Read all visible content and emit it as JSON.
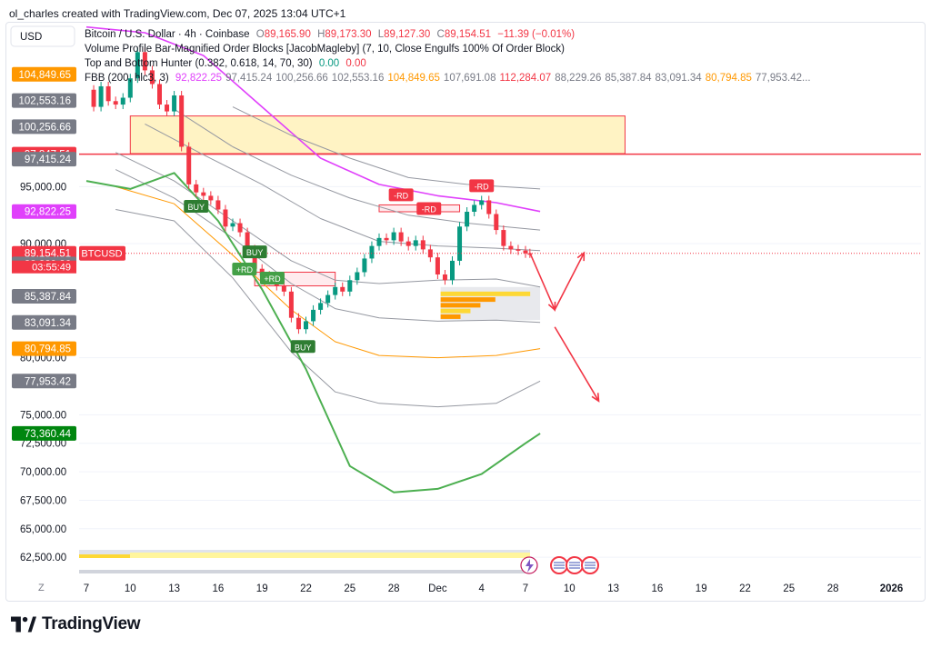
{
  "credit": "ol_charles created with TradingView.com, Dec 07, 2025 13:04 UTC+1",
  "currency_button": "USD",
  "scale_button": "Z",
  "brand": "TradingView",
  "legend": {
    "symbol_line": "Bitcoin / U.S. Dollar · 4h · Coinbase",
    "ohlc": {
      "o_label": "O",
      "o": "89,165.90",
      "h_label": "H",
      "h": "89,173.30",
      "l_label": "L",
      "l": "89,127.30",
      "c_label": "C",
      "c": "89,154.51",
      "change": "−11.39 (−0.01%)"
    },
    "indicator_1": "Volume Profile Bar-Magnified Order Blocks [JacobMagleby] (7, 10, Close Engulfs 100% Of Order Block)",
    "indicator_2": {
      "name": "Top and Bottom Hunter (0.382, 0.618, 14, 70, 30)",
      "v1": "0.00",
      "v2": "0.00"
    },
    "indicator_3": {
      "name": "FBB (200, hlc3, 3)",
      "values": [
        {
          "text": "92,822.25",
          "color": "#e040fb"
        },
        {
          "text": "97,415.24",
          "color": "#787b86"
        },
        {
          "text": "100,256.66",
          "color": "#787b86"
        },
        {
          "text": "102,553.16",
          "color": "#787b86"
        },
        {
          "text": "104,849.65",
          "color": "#ff9800"
        },
        {
          "text": "107,691.08",
          "color": "#787b86"
        },
        {
          "text": "112,284.07",
          "color": "#f23645"
        },
        {
          "text": "88,229.26",
          "color": "#787b86"
        },
        {
          "text": "85,387.84",
          "color": "#787b86"
        },
        {
          "text": "83,091.34",
          "color": "#787b86"
        },
        {
          "text": "80,794.85",
          "color": "#ff9800"
        },
        {
          "text": "77,953.42...",
          "color": "#787b86"
        }
      ]
    }
  },
  "symbol_tag": "BTCUSD",
  "countdown": "03:55:49",
  "chart_data": {
    "type": "line",
    "title": "Bitcoin / U.S. Dollar · 4h · Coinbase",
    "xlabel": "",
    "ylabel": "",
    "ylim": [
      61000,
      108500
    ],
    "y_ticks": [
      "62,500.00",
      "65,000.00",
      "67,500.00",
      "70,000.00",
      "72,500.00",
      "75,000.00",
      "80,000.00",
      "90,000.00",
      "95,000.00"
    ],
    "y_tick_values": [
      62500,
      65000,
      67500,
      70000,
      72500,
      75000,
      80000,
      90000,
      95000
    ],
    "x_ticks": [
      {
        "label": "7",
        "day": 0
      },
      {
        "label": "10",
        "day": 3
      },
      {
        "label": "13",
        "day": 6
      },
      {
        "label": "16",
        "day": 9
      },
      {
        "label": "19",
        "day": 12
      },
      {
        "label": "22",
        "day": 15
      },
      {
        "label": "25",
        "day": 18
      },
      {
        "label": "28",
        "day": 21
      },
      {
        "label": "Dec",
        "day": 24
      },
      {
        "label": "4",
        "day": 27
      },
      {
        "label": "7",
        "day": 30
      },
      {
        "label": "10",
        "day": 33
      },
      {
        "label": "13",
        "day": 36
      },
      {
        "label": "16",
        "day": 39
      },
      {
        "label": "19",
        "day": 42
      },
      {
        "label": "22",
        "day": 45
      },
      {
        "label": "25",
        "day": 48
      },
      {
        "label": "28",
        "day": 51
      },
      {
        "label": "2026",
        "day": 55
      }
    ],
    "price_labels": [
      {
        "text": "104,849.65",
        "value": 104849.65,
        "bg": "#ff9800",
        "fg": "#ffffff"
      },
      {
        "text": "102,553.16",
        "value": 102553.16,
        "bg": "#787b86",
        "fg": "#ffffff"
      },
      {
        "text": "100,256.66",
        "value": 100256.66,
        "bg": "#787b86",
        "fg": "#ffffff"
      },
      {
        "text": "97,847.51",
        "value": 97847.51,
        "bg": "#f23645",
        "fg": "#ffffff"
      },
      {
        "text": "97,415.24",
        "value": 97415.24,
        "bg": "#787b86",
        "fg": "#ffffff"
      },
      {
        "text": "92,822.25",
        "value": 92822.25,
        "bg": "#e040fb",
        "fg": "#ffffff"
      },
      {
        "text": "89,154.51",
        "value": 89154.51,
        "bg": "#f23645",
        "fg": "#ffffff"
      },
      {
        "text": "88,229.26",
        "value": 88229.26,
        "bg": "#787b86",
        "fg": "#ffffff"
      },
      {
        "text": "85,387.84",
        "value": 85387.84,
        "bg": "#787b86",
        "fg": "#ffffff"
      },
      {
        "text": "83,091.34",
        "value": 83091.34,
        "bg": "#787b86",
        "fg": "#ffffff"
      },
      {
        "text": "80,794.85",
        "value": 80794.85,
        "bg": "#ff9800",
        "fg": "#ffffff"
      },
      {
        "text": "77,953.42",
        "value": 77953.42,
        "bg": "#787b86",
        "fg": "#ffffff"
      },
      {
        "text": "73,360.44",
        "value": 73360.44,
        "bg": "#00860f",
        "fg": "#ffffff"
      }
    ],
    "price_path": {
      "x": [
        0,
        0.5,
        1,
        1.5,
        2,
        2.5,
        3,
        3.5,
        4,
        4.5,
        5,
        5.5,
        6,
        6.5,
        7,
        7.5,
        8,
        8.5,
        9,
        9.5,
        10,
        10.5,
        11,
        11.5,
        12,
        12.5,
        13,
        13.5,
        14,
        14.5,
        15,
        15.5,
        16,
        16.5,
        17,
        17.5,
        18,
        18.5,
        19,
        19.5,
        20,
        20.5,
        21,
        21.5,
        22,
        22.5,
        23,
        23.5,
        24,
        24.5,
        25,
        25.5,
        26,
        26.5,
        27,
        27.5,
        28,
        28.5,
        29,
        29.5,
        30,
        30.3
      ],
      "y": [
        103500,
        102000,
        103800,
        102500,
        102200,
        102800,
        104500,
        106800,
        105200,
        104000,
        102200,
        101600,
        103000,
        98500,
        95200,
        94500,
        94200,
        93800,
        93000,
        91500,
        91800,
        91000,
        89500,
        87800,
        87200,
        86800,
        86300,
        85800,
        83500,
        82500,
        83200,
        84200,
        84800,
        85500,
        86200,
        85800,
        86800,
        87500,
        88700,
        89800,
        90500,
        90300,
        91000,
        90200,
        89800,
        90300,
        89500,
        88800,
        87300,
        86800,
        88500,
        91500,
        92800,
        93400,
        93800,
        92600,
        91200,
        89800,
        89500,
        89400,
        89154,
        89150
      ]
    },
    "series": [
      {
        "name": "FBB basis",
        "color": "#e040fb",
        "x": [
          0,
          4,
          8,
          12,
          16,
          20,
          24,
          28,
          31
        ],
        "y": [
          109000,
          108500,
          106500,
          102000,
          97500,
          95200,
          94200,
          93600,
          92822
        ]
      },
      {
        "name": "FBB upper 3",
        "color": "#9598a1",
        "x": [
          10,
          14,
          18,
          22,
          26,
          31
        ],
        "y": [
          102000,
          99500,
          97500,
          95800,
          95200,
          94800
        ]
      },
      {
        "name": "FBB upper 2",
        "color": "#9598a1",
        "x": [
          6,
          10,
          14,
          18,
          22,
          26,
          31
        ],
        "y": [
          101800,
          98500,
          96000,
          94000,
          92500,
          91800,
          91200
        ]
      },
      {
        "name": "FBB upper 1",
        "color": "#9598a1",
        "x": [
          4,
          8,
          12,
          16,
          20,
          24,
          28,
          31
        ],
        "y": [
          100500,
          97800,
          95200,
          92200,
          90200,
          89800,
          89600,
          89400
        ]
      },
      {
        "name": "FBB lower 1",
        "color": "#9598a1",
        "x": [
          2,
          6,
          10,
          14,
          17,
          20,
          24,
          28,
          31
        ],
        "y": [
          98000,
          95500,
          92000,
          88500,
          86800,
          86500,
          86800,
          86900,
          86200
        ]
      },
      {
        "name": "FBB lower 2",
        "color": "#9598a1",
        "x": [
          2,
          6,
          10,
          14,
          17,
          20,
          24,
          28,
          31
        ],
        "y": [
          96500,
          94000,
          90500,
          86500,
          84300,
          83500,
          83200,
          83300,
          83091
        ]
      },
      {
        "name": "FBB lower 3",
        "color": "#ff9800",
        "x": [
          2,
          6,
          10,
          14,
          17,
          20,
          24,
          28,
          31
        ],
        "y": [
          95000,
          93500,
          89000,
          84200,
          81400,
          80200,
          80000,
          80200,
          80794
        ]
      },
      {
        "name": "FBB lower 4",
        "color": "#9598a1",
        "x": [
          2,
          6,
          10,
          14,
          17,
          20,
          24,
          28,
          31
        ],
        "y": [
          93000,
          92000,
          87000,
          80500,
          77000,
          76000,
          75700,
          76000,
          77953
        ]
      },
      {
        "name": "FBB lower 5",
        "color": "#4caf50",
        "x": [
          0,
          3,
          6,
          9,
          12,
          15,
          18,
          21,
          24,
          27,
          30,
          31
        ],
        "y": [
          95500,
          94800,
          96200,
          92000,
          86000,
          79000,
          70500,
          68200,
          68500,
          69800,
          72500,
          73360
        ]
      }
    ],
    "order_blocks": [
      {
        "x0": 3,
        "x1": 36.8,
        "y0": 97900,
        "y1": 101200,
        "fill": "#fff3c4",
        "stroke": "#f23645"
      },
      {
        "x0": 11.5,
        "x1": 17,
        "y0": 86300,
        "y1": 87500,
        "fill": "#ffebee",
        "stroke": "#f23645"
      },
      {
        "x0": 20,
        "x1": 25.5,
        "y0": 92800,
        "y1": 93400,
        "fill": "#ffebee",
        "stroke": "#f23645"
      }
    ],
    "horizontal_line": {
      "value": 97847.51,
      "color": "#f23645"
    },
    "signals": [
      {
        "text": "BUY",
        "x": 7.5,
        "y": 93200,
        "bg": "#2e7d32"
      },
      {
        "text": "BUY",
        "x": 11.5,
        "y": 89200,
        "bg": "#2e7d32"
      },
      {
        "text": "+RD",
        "x": 10.8,
        "y": 87700,
        "bg": "#43a047"
      },
      {
        "text": "+RD",
        "x": 12.7,
        "y": 86900,
        "bg": "#43a047"
      },
      {
        "text": "BUY",
        "x": 14.8,
        "y": 80900,
        "bg": "#2e7d32"
      },
      {
        "text": "-RD",
        "x": 21.5,
        "y": 94200,
        "bg": "#f23645"
      },
      {
        "text": "-RD",
        "x": 23.4,
        "y": 93000,
        "bg": "#f23645"
      },
      {
        "text": "-RD",
        "x": 27,
        "y": 95000,
        "bg": "#f23645"
      }
    ],
    "projection": {
      "x": [
        30.3,
        32,
        34,
        32,
        35
      ],
      "y": [
        89200,
        84200,
        89200,
        82700,
        76200
      ]
    },
    "volume_profile": {
      "x0": 24.2,
      "x1": 31,
      "bars": [
        {
          "y": 85600,
          "len": 0.9,
          "color": "#fdd835"
        },
        {
          "y": 85100,
          "len": 0.55,
          "color": "#ff9800"
        },
        {
          "y": 84600,
          "len": 0.4,
          "color": "#ff9800"
        },
        {
          "y": 84100,
          "len": 0.3,
          "color": "#fdd835"
        },
        {
          "y": 83600,
          "len": 0.2,
          "color": "#ff9800"
        }
      ]
    }
  }
}
